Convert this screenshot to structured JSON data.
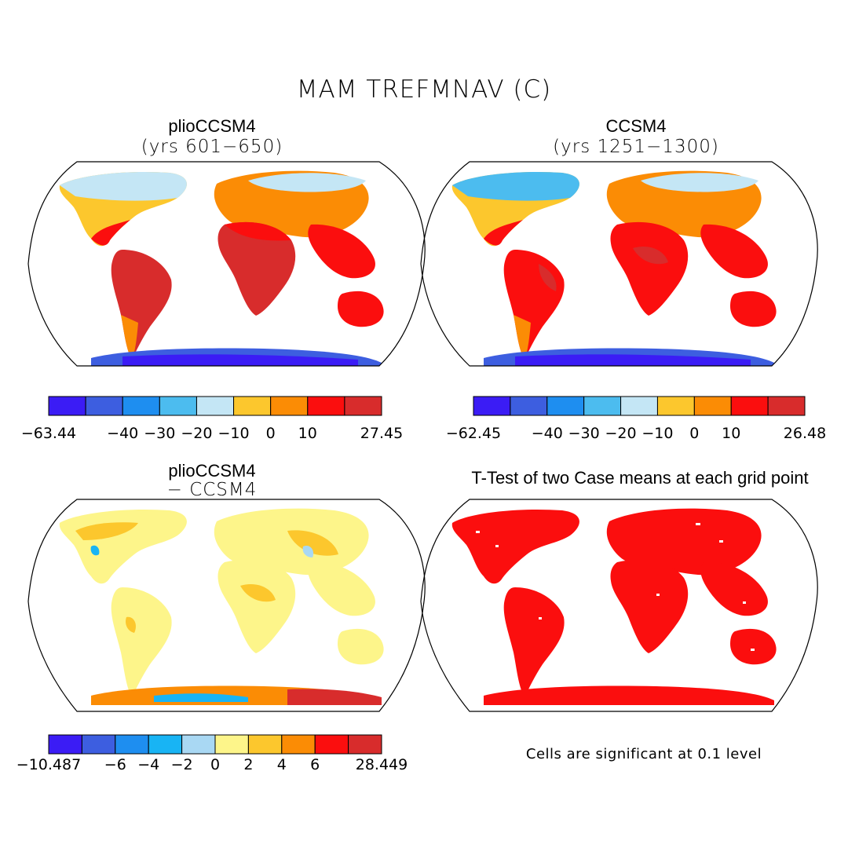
{
  "figure": {
    "title": "MAM TREFMNAV (C)",
    "panels": [
      {
        "id": "p1",
        "title": "plioCCSM4",
        "subtitle": "(yrs 601−650)",
        "colorbar": {
          "colors": [
            "#3b1cf5",
            "#3d5ee0",
            "#1e8ef0",
            "#4cbcef",
            "#c4e6f5",
            "#fcc72d",
            "#fb8c05",
            "#fb0e0e",
            "#d82c2c"
          ],
          "labels": [
            "−63.44",
            "−40",
            "−30",
            "−20",
            "−10",
            "0",
            "10",
            "27.45"
          ]
        }
      },
      {
        "id": "p2",
        "title": "CCSM4",
        "subtitle": "(yrs 1251−1300)",
        "colorbar": {
          "colors": [
            "#3b1cf5",
            "#3d5ee0",
            "#1e8ef0",
            "#4cbcef",
            "#c4e6f5",
            "#fcc72d",
            "#fb8c05",
            "#fb0e0e",
            "#d82c2c"
          ],
          "labels": [
            "−62.45",
            "−40",
            "−30",
            "−20",
            "−10",
            "0",
            "10",
            "26.48"
          ]
        }
      },
      {
        "id": "p3",
        "title": "plioCCSM4",
        "subtitle": "− CCSM4",
        "colorbar": {
          "colors": [
            "#3b1cf5",
            "#3d5ee0",
            "#1e8ef0",
            "#18b4f4",
            "#a9d8f3",
            "#fdf58a",
            "#fcc72d",
            "#fb8c05",
            "#fb0e0e",
            "#d82c2c"
          ],
          "labels": [
            "−10.487",
            "−6",
            "−4",
            "−2",
            "0",
            "2",
            "4",
            "6",
            "28.449"
          ]
        }
      },
      {
        "id": "p4",
        "title": "T-Test of two Case means at each grid point",
        "subtitle": "",
        "note": "Cells are significant at 0.1 level"
      }
    ]
  }
}
